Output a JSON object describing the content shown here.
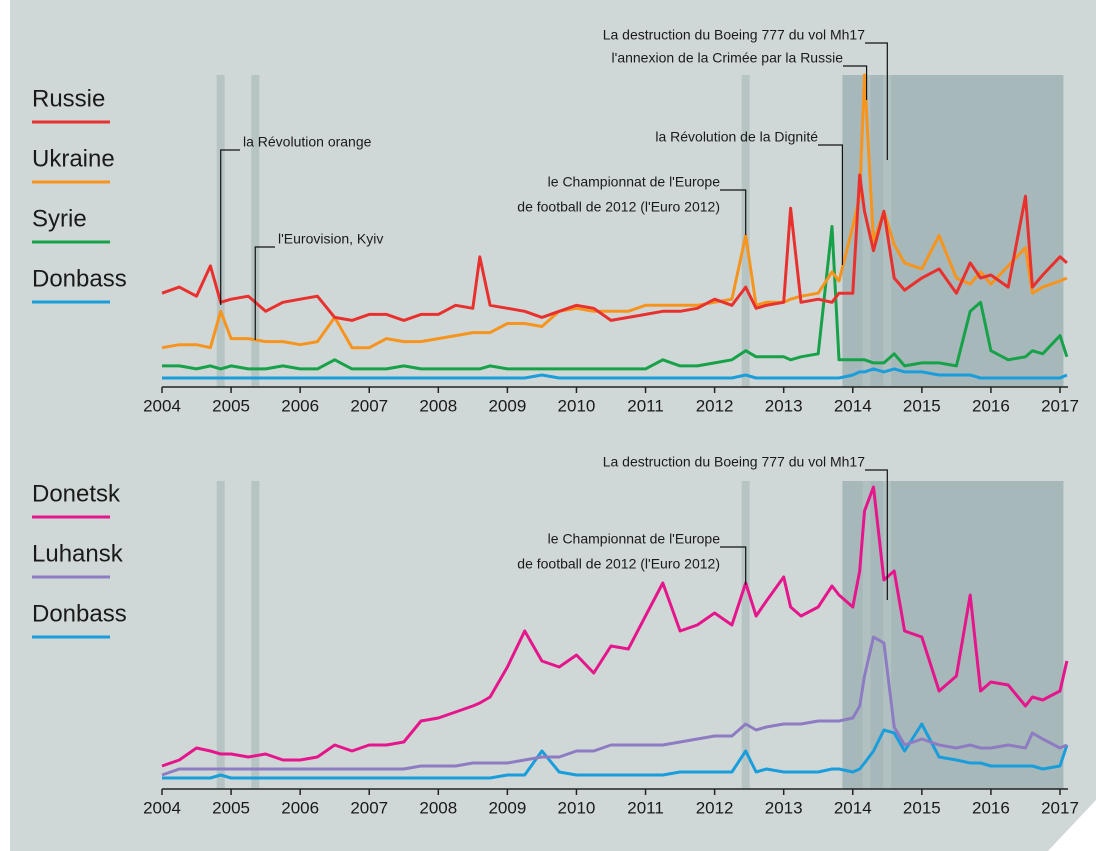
{
  "chart_data": [
    {
      "type": "line",
      "x": [
        2004,
        2004.25,
        2004.5,
        2004.7,
        2004.85,
        2005,
        2005.25,
        2005.5,
        2005.75,
        2006,
        2006.25,
        2006.5,
        2006.75,
        2007,
        2007.25,
        2007.5,
        2007.75,
        2008,
        2008.25,
        2008.5,
        2008.6,
        2008.75,
        2009,
        2009.25,
        2009.5,
        2009.75,
        2010,
        2010.25,
        2010.5,
        2010.75,
        2011,
        2011.25,
        2011.5,
        2011.75,
        2012,
        2012.25,
        2012.45,
        2012.6,
        2012.75,
        2013,
        2013.1,
        2013.25,
        2013.5,
        2013.7,
        2013.8,
        2014,
        2014.1,
        2014.17,
        2014.3,
        2014.45,
        2014.6,
        2014.75,
        2015,
        2015.25,
        2015.5,
        2015.7,
        2015.85,
        2016,
        2016.25,
        2016.5,
        2016.6,
        2016.75,
        2017,
        2017.1
      ],
      "xlim": [
        2004,
        2017
      ],
      "ylim": [
        0,
        100
      ],
      "xticks": [
        2004,
        2005,
        2006,
        2007,
        2008,
        2009,
        2010,
        2011,
        2012,
        2013,
        2014,
        2015,
        2016,
        2017
      ],
      "series": [
        {
          "name": "Russie",
          "color": "#e8312f",
          "values": [
            28,
            30,
            27,
            37,
            25,
            26,
            27,
            22,
            25,
            26,
            27,
            20,
            19,
            21,
            21,
            19,
            21,
            21,
            24,
            23,
            40,
            24,
            23,
            22,
            20,
            22,
            24,
            23,
            19,
            20,
            21,
            22,
            22,
            23,
            26,
            24,
            30,
            23,
            24,
            25,
            56,
            25,
            26,
            25,
            28,
            28,
            67,
            55,
            42,
            55,
            33,
            29,
            33,
            36,
            28,
            38,
            33,
            34,
            30,
            60,
            30,
            34,
            40,
            38
          ]
        },
        {
          "name": "Ukraine",
          "color": "#f7941d",
          "values": [
            10,
            11,
            11,
            10,
            22,
            13,
            13,
            12,
            12,
            11,
            12,
            20,
            10,
            10,
            13,
            12,
            12,
            13,
            14,
            15,
            15,
            15,
            18,
            18,
            17,
            22,
            23,
            22,
            22,
            22,
            24,
            24,
            24,
            24,
            25,
            26,
            47,
            24,
            25,
            25,
            26,
            27,
            28,
            35,
            32,
            50,
            60,
            100,
            45,
            55,
            44,
            38,
            36,
            47,
            33,
            31,
            35,
            31,
            37,
            43,
            28,
            30,
            32,
            33
          ]
        },
        {
          "name": "Syrie",
          "color": "#17a24a",
          "values": [
            4,
            4,
            3,
            4,
            3,
            4,
            3,
            3,
            4,
            3,
            3,
            6,
            3,
            3,
            3,
            4,
            3,
            3,
            3,
            3,
            3,
            4,
            3,
            3,
            3,
            3,
            3,
            3,
            3,
            3,
            3,
            6,
            4,
            4,
            5,
            6,
            9,
            7,
            7,
            7,
            6,
            7,
            8,
            50,
            6,
            6,
            6,
            6,
            5,
            5,
            8,
            4,
            5,
            5,
            4,
            22,
            25,
            9,
            6,
            7,
            9,
            8,
            14,
            7
          ]
        },
        {
          "name": "Donbass",
          "color": "#1a9ddb",
          "values": [
            0,
            0,
            0,
            0,
            0,
            0,
            0,
            0,
            0,
            0,
            0,
            0,
            0,
            0,
            0,
            0,
            0,
            0,
            0,
            0,
            0,
            0,
            0,
            0,
            1,
            0,
            0,
            0,
            0,
            0,
            0,
            0,
            0,
            0,
            0,
            0,
            1,
            0,
            0,
            0,
            0,
            0,
            0,
            0,
            0,
            1,
            2,
            2,
            3,
            2,
            3,
            2,
            2,
            1,
            1,
            1,
            0,
            0,
            0,
            0,
            0,
            0,
            0,
            1
          ]
        }
      ],
      "event_bands": [
        2004.85,
        2005.35,
        2012.45,
        2014.2,
        2014.5
      ],
      "shaded_range": [
        2013.85,
        2017.05
      ],
      "band_color": "#b3c1c1",
      "shade_color": "#a7b8ba",
      "annotations": [
        {
          "text": [
            "La destruction du Boeing 777 du vol Mh17"
          ],
          "x": 2014.5
        },
        {
          "text": [
            "l'annexion de la Crimée par la Russie"
          ],
          "x": 2014.2
        },
        {
          "text": [
            "la Révolution de la Dignité"
          ],
          "x": 2013.85
        },
        {
          "text": [
            "le Championnat de l'Europe",
            "de football de 2012 (l'Euro 2012)"
          ],
          "x": 2012.45
        },
        {
          "text": [
            "la Révolution orange"
          ],
          "x": 2004.85
        },
        {
          "text": [
            "l'Eurovision, Kyiv"
          ],
          "x": 2005.35
        }
      ]
    },
    {
      "type": "line",
      "x": [
        2004,
        2004.25,
        2004.5,
        2004.7,
        2004.85,
        2005,
        2005.25,
        2005.5,
        2005.75,
        2006,
        2006.25,
        2006.5,
        2006.75,
        2007,
        2007.25,
        2007.5,
        2007.75,
        2008,
        2008.25,
        2008.5,
        2008.6,
        2008.75,
        2009,
        2009.25,
        2009.5,
        2009.75,
        2010,
        2010.25,
        2010.5,
        2010.75,
        2011,
        2011.25,
        2011.5,
        2011.75,
        2012,
        2012.25,
        2012.45,
        2012.6,
        2012.75,
        2013,
        2013.1,
        2013.25,
        2013.5,
        2013.7,
        2013.8,
        2014,
        2014.1,
        2014.17,
        2014.3,
        2014.45,
        2014.6,
        2014.75,
        2015,
        2015.25,
        2015.5,
        2015.7,
        2015.85,
        2016,
        2016.25,
        2016.5,
        2016.6,
        2016.75,
        2017,
        2017.1
      ],
      "xlim": [
        2004,
        2017
      ],
      "ylim": [
        0,
        100
      ],
      "xticks": [
        2004,
        2005,
        2006,
        2007,
        2008,
        2009,
        2010,
        2011,
        2012,
        2013,
        2014,
        2015,
        2016,
        2017
      ],
      "series": [
        {
          "name": "Donetsk",
          "color": "#e5168c",
          "values": [
            5,
            7,
            11,
            10,
            9,
            9,
            8,
            9,
            7,
            7,
            8,
            12,
            10,
            12,
            12,
            13,
            20,
            21,
            23,
            25,
            26,
            28,
            38,
            50,
            40,
            38,
            42,
            36,
            45,
            44,
            55,
            66,
            50,
            52,
            56,
            52,
            66,
            55,
            60,
            68,
            58,
            55,
            58,
            65,
            62,
            58,
            70,
            90,
            98,
            67,
            70,
            50,
            48,
            30,
            35,
            62,
            30,
            33,
            32,
            25,
            28,
            27,
            30,
            40
          ]
        },
        {
          "name": "Luhansk",
          "color": "#8e7cc3",
          "values": [
            2,
            4,
            4,
            4,
            4,
            4,
            4,
            4,
            4,
            4,
            4,
            4,
            4,
            4,
            4,
            4,
            5,
            5,
            5,
            6,
            6,
            6,
            6,
            7,
            8,
            8,
            10,
            10,
            12,
            12,
            12,
            12,
            13,
            14,
            15,
            15,
            19,
            17,
            18,
            19,
            19,
            19,
            20,
            20,
            20,
            21,
            25,
            35,
            48,
            46,
            18,
            12,
            14,
            12,
            11,
            12,
            11,
            11,
            12,
            11,
            16,
            14,
            11,
            12
          ]
        },
        {
          "name": "Donbass",
          "color": "#1a9ddb",
          "values": [
            1,
            1,
            1,
            1,
            2,
            1,
            1,
            1,
            1,
            1,
            1,
            1,
            1,
            1,
            1,
            1,
            1,
            1,
            1,
            1,
            1,
            1,
            2,
            2,
            10,
            3,
            2,
            2,
            2,
            2,
            2,
            2,
            3,
            3,
            3,
            3,
            10,
            3,
            4,
            3,
            3,
            3,
            3,
            4,
            4,
            3,
            4,
            6,
            10,
            17,
            16,
            10,
            19,
            8,
            7,
            6,
            6,
            5,
            5,
            5,
            5,
            4,
            5,
            12
          ]
        }
      ],
      "event_bands": [
        2004.85,
        2005.35,
        2012.45,
        2014.2,
        2014.5
      ],
      "shaded_range": [
        2013.85,
        2017.05
      ],
      "band_color": "#b3c1c1",
      "shade_color": "#a7b8ba",
      "annotations": [
        {
          "text": [
            "La destruction du Boeing 777 du vol Mh17"
          ],
          "x": 2014.5
        },
        {
          "text": [
            "le Championnat de l'Europe",
            "de football de 2012 (l'Euro 2012)"
          ],
          "x": 2012.45
        }
      ]
    }
  ]
}
